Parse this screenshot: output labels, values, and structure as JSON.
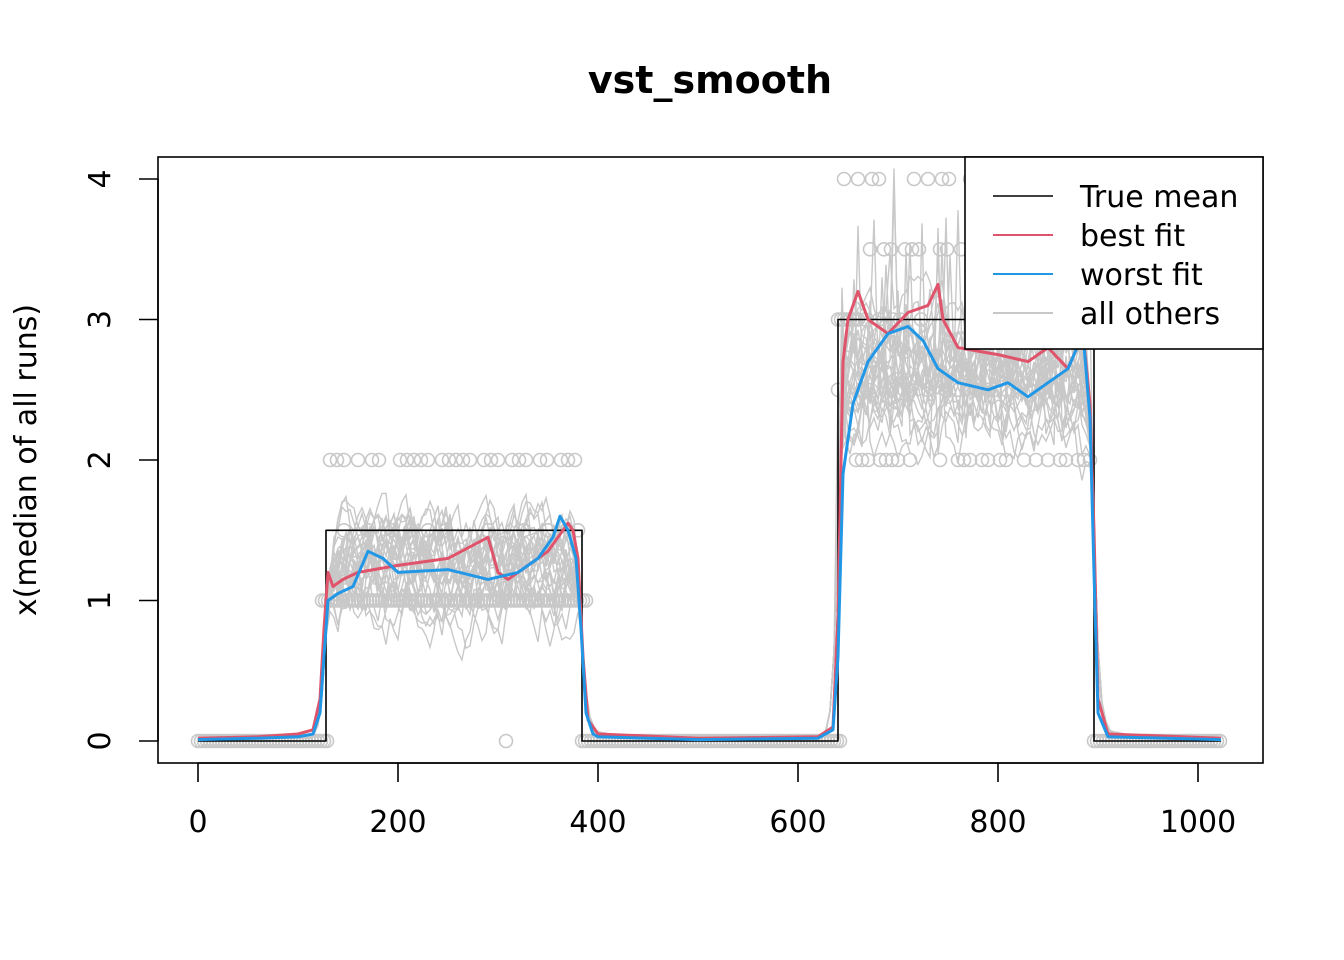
{
  "chart_data": {
    "type": "line",
    "title": "vst_smooth",
    "xlabel": "",
    "ylabel": "x(median of all runs)",
    "xlim": [
      0,
      1023
    ],
    "ylim": [
      0,
      4
    ],
    "x_ticks": [
      "0",
      "200",
      "400",
      "600",
      "800",
      "1000"
    ],
    "y_ticks": [
      "0",
      "1",
      "2",
      "3",
      "4"
    ],
    "legend_position": "top-right",
    "colors": {
      "true_mean": "#000000",
      "best_fit": "#DF536B",
      "worst_fit": "#2297E6",
      "all_others": "#C8C8C8"
    },
    "legend": [
      {
        "label": "True mean",
        "key": "true_mean"
      },
      {
        "label": "best fit",
        "key": "best_fit"
      },
      {
        "label": "worst fit",
        "key": "worst_fit"
      },
      {
        "label": "all others",
        "key": "all_others"
      }
    ],
    "series": [
      {
        "name": "True mean",
        "key": "true_mean",
        "x": [
          0,
          128,
          128,
          384,
          384,
          640,
          640,
          896,
          896,
          1023
        ],
        "y": [
          0,
          0,
          1.5,
          1.5,
          0,
          0,
          3,
          3,
          0,
          0
        ]
      },
      {
        "name": "best fit",
        "key": "best_fit",
        "x": [
          0,
          60,
          100,
          115,
          122,
          126,
          130,
          135,
          145,
          160,
          200,
          250,
          290,
          300,
          310,
          330,
          350,
          360,
          370,
          375,
          380,
          385,
          390,
          400,
          500,
          620,
          635,
          640,
          645,
          650,
          660,
          670,
          690,
          710,
          730,
          740,
          745,
          760,
          800,
          830,
          850,
          870,
          885,
          892,
          896,
          900,
          910,
          1023
        ],
        "y": [
          0.02,
          0.03,
          0.05,
          0.08,
          0.3,
          0.8,
          1.2,
          1.1,
          1.15,
          1.2,
          1.25,
          1.3,
          1.45,
          1.2,
          1.15,
          1.25,
          1.35,
          1.45,
          1.55,
          1.5,
          1.3,
          0.6,
          0.15,
          0.05,
          0.02,
          0.03,
          0.1,
          0.9,
          2.7,
          3.0,
          3.2,
          3.0,
          2.9,
          3.05,
          3.1,
          3.25,
          3.0,
          2.8,
          2.75,
          2.7,
          2.8,
          2.65,
          2.9,
          2.4,
          1.5,
          0.3,
          0.05,
          0.02
        ]
      },
      {
        "name": "worst fit",
        "key": "worst_fit",
        "x": [
          0,
          60,
          100,
          115,
          122,
          126,
          130,
          140,
          155,
          170,
          185,
          200,
          250,
          290,
          320,
          340,
          355,
          362,
          370,
          378,
          383,
          388,
          395,
          400,
          500,
          620,
          635,
          640,
          645,
          655,
          670,
          690,
          710,
          725,
          740,
          760,
          790,
          810,
          830,
          850,
          870,
          885,
          892,
          896,
          900,
          910,
          1023
        ],
        "y": [
          0.01,
          0.02,
          0.03,
          0.05,
          0.2,
          0.6,
          1.0,
          1.05,
          1.1,
          1.35,
          1.3,
          1.2,
          1.22,
          1.15,
          1.2,
          1.3,
          1.45,
          1.6,
          1.5,
          1.3,
          0.8,
          0.2,
          0.05,
          0.03,
          0.01,
          0.02,
          0.08,
          0.6,
          1.9,
          2.4,
          2.7,
          2.9,
          2.95,
          2.85,
          2.65,
          2.55,
          2.5,
          2.55,
          2.45,
          2.55,
          2.65,
          2.9,
          2.3,
          1.2,
          0.2,
          0.03,
          0.01
        ]
      }
    ],
    "all_others": {
      "runs": 30,
      "description": "band of light gray runs around the true mean"
    },
    "point_levels": [
      0,
      1,
      1.5,
      2,
      2.5,
      3,
      3.5,
      4
    ]
  }
}
